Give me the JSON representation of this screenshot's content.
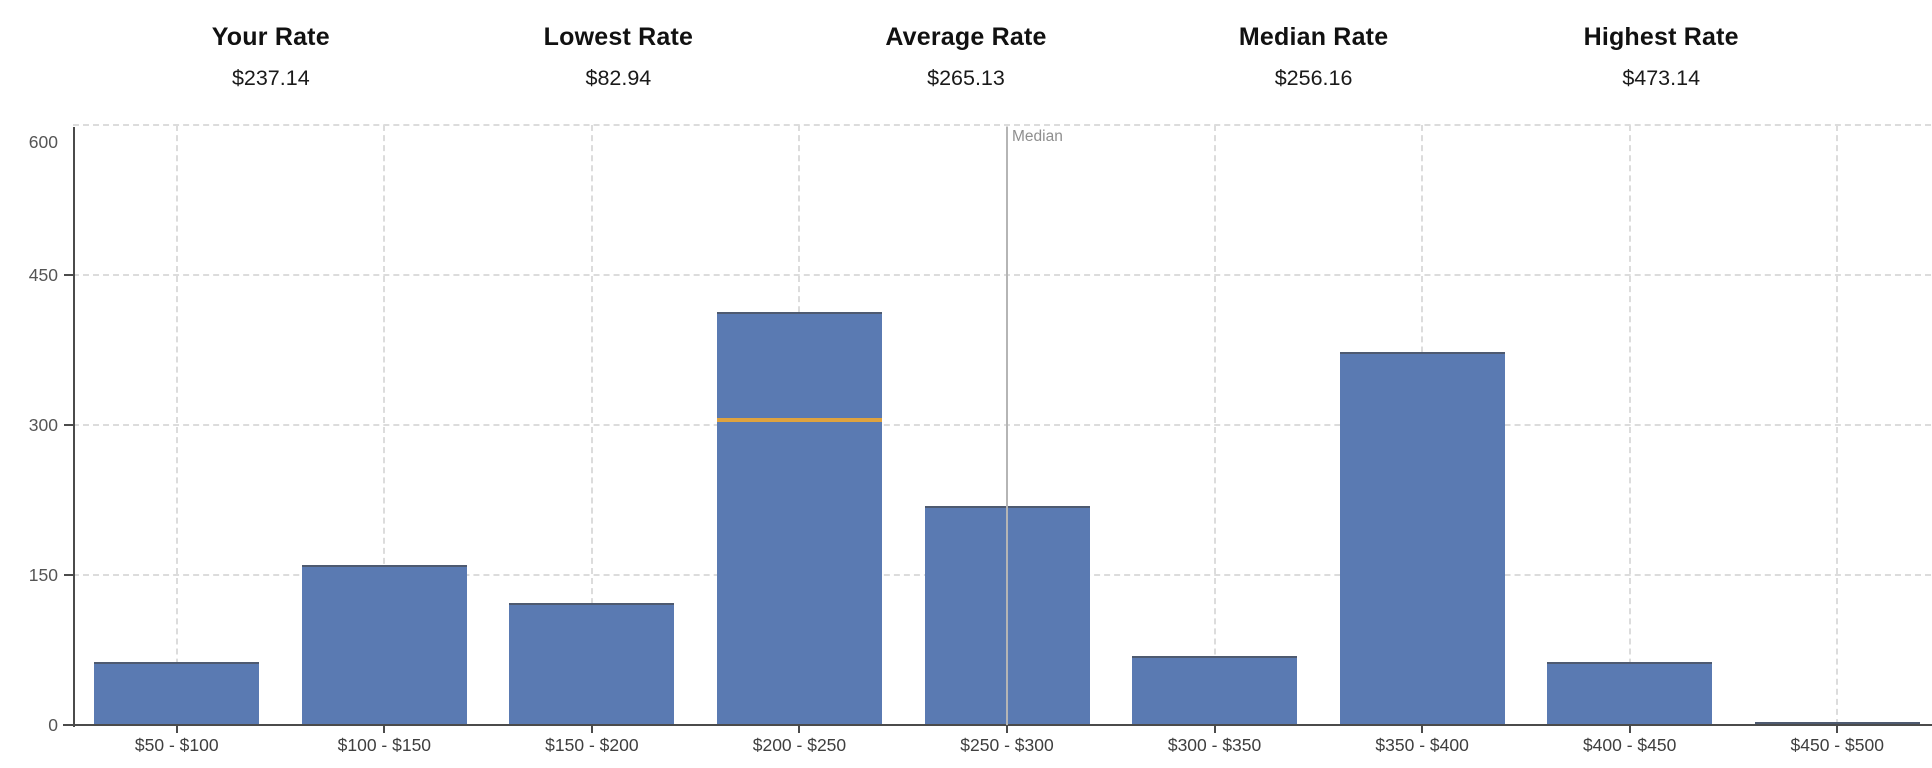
{
  "stats": [
    {
      "label": "Your Rate",
      "value": "$237.14"
    },
    {
      "label": "Lowest Rate",
      "value": "$82.94"
    },
    {
      "label": "Average Rate",
      "value": "$265.13"
    },
    {
      "label": "Median Rate",
      "value": "$256.16"
    },
    {
      "label": "Highest Rate",
      "value": "$473.14"
    }
  ],
  "chart_data": {
    "type": "bar",
    "title": "",
    "xlabel": "",
    "ylabel": "",
    "categories": [
      "$50 - $100",
      "$100 - $150",
      "$150 - $200",
      "$200 - $250",
      "$250 - $300",
      "$300 - $350",
      "$350 - $400",
      "$400 - $450",
      "$450 - $500"
    ],
    "values": [
      63,
      160,
      122,
      413,
      219,
      69,
      373,
      63,
      3
    ],
    "ylim": [
      0,
      600
    ],
    "yticks": [
      0,
      150,
      300,
      450,
      600
    ],
    "grid": "dashed horizontal at yticks and vertical at category centers",
    "legend": "none",
    "annotations": {
      "median_line": {
        "label": "Median",
        "category": "$250 - $300"
      },
      "your_rate_marker": {
        "category": "$200 - $250",
        "value": 305
      }
    },
    "colors": {
      "bar": "#5a7ab2",
      "bar_edge": "#4e5a70",
      "marker": "#dfa33e",
      "median_line": "#b5b5b5",
      "grid": "#dcdcdc",
      "axis": "#4b4b4b"
    }
  }
}
